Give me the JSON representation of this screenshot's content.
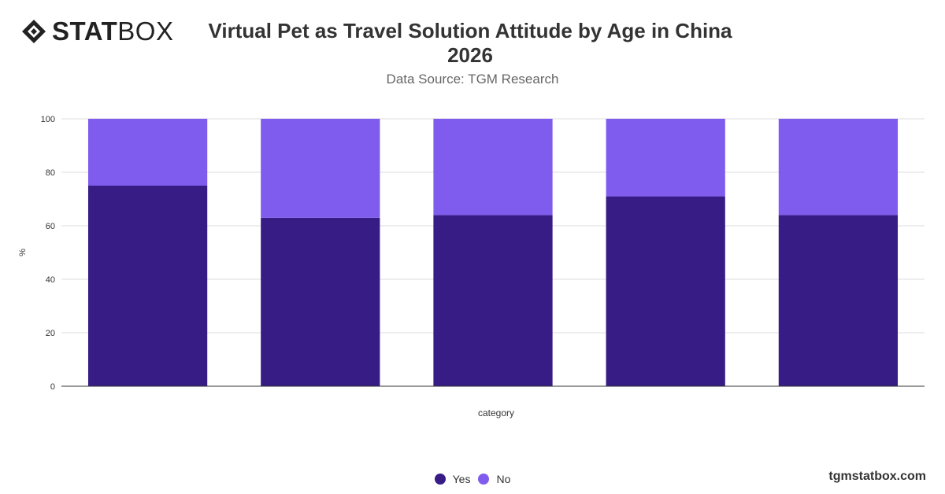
{
  "brand": {
    "bold": "STAT",
    "light": "BOX",
    "site": "tgmstatbox.com"
  },
  "header": {
    "title": "Virtual Pet as Travel Solution Attitude by Age in China 2026",
    "subtitle": "Data Source: TGM Research"
  },
  "colors": {
    "yes": "#371c86",
    "no": "#7f5cee"
  },
  "chart_data": {
    "type": "bar",
    "stacked": true,
    "categories": [
      "",
      "",
      "",
      "",
      ""
    ],
    "series": [
      {
        "name": "Yes",
        "values": [
          75,
          63,
          64,
          71,
          64
        ]
      },
      {
        "name": "No",
        "values": [
          25,
          37,
          36,
          29,
          36
        ]
      }
    ],
    "xlabel": "category",
    "ylabel": "%",
    "ylim": [
      0,
      100
    ],
    "yticks": [
      0,
      20,
      40,
      60,
      80,
      100
    ],
    "grid": true,
    "legend": "bottom-center"
  }
}
